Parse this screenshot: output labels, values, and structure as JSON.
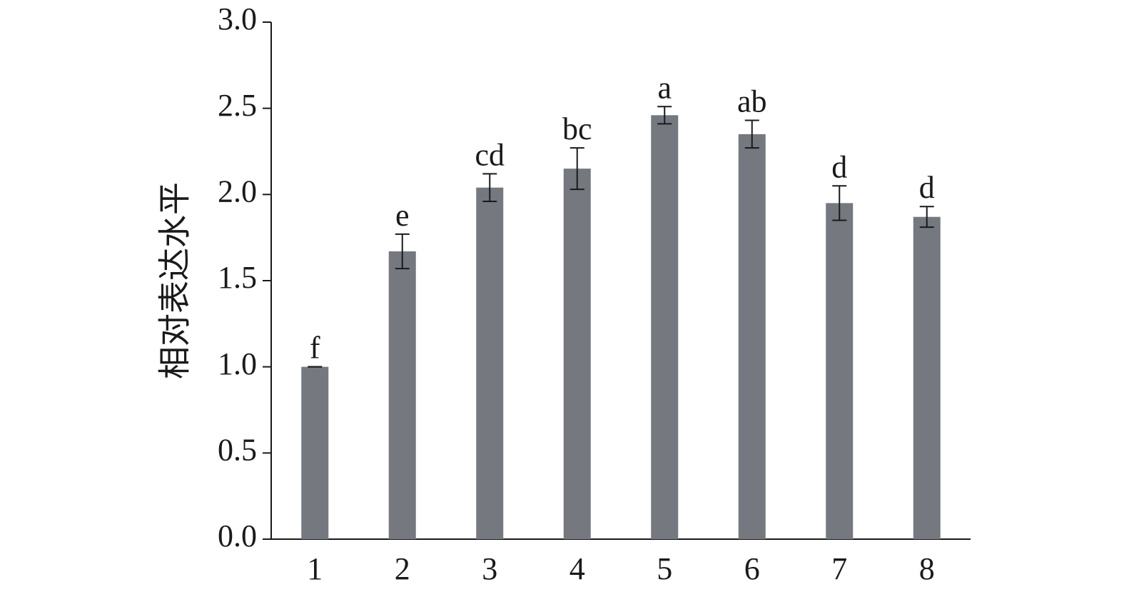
{
  "chart_data": {
    "type": "bar",
    "y_label": "相对表达水平",
    "categories": [
      "1",
      "2",
      "3",
      "4",
      "5",
      "6",
      "7",
      "8"
    ],
    "values": [
      1.0,
      1.67,
      2.04,
      2.15,
      2.46,
      2.35,
      1.95,
      1.87
    ],
    "errors": [
      0,
      0.1,
      0.08,
      0.12,
      0.05,
      0.08,
      0.1,
      0.06
    ],
    "annotations": [
      "f",
      "e",
      "cd",
      "bc",
      "a",
      "ab",
      "d",
      "d"
    ],
    "color": "#75787f",
    "ylim": [
      0,
      3.0
    ],
    "yticks": [
      {
        "value": 0,
        "label": "0.0"
      },
      0.5,
      {
        "value": 1.0,
        "label": "1.0"
      },
      1.5,
      {
        "value": 2.0,
        "label": "2.0"
      },
      2.5,
      {
        "value": 3.0,
        "label": "3.0"
      }
    ]
  }
}
